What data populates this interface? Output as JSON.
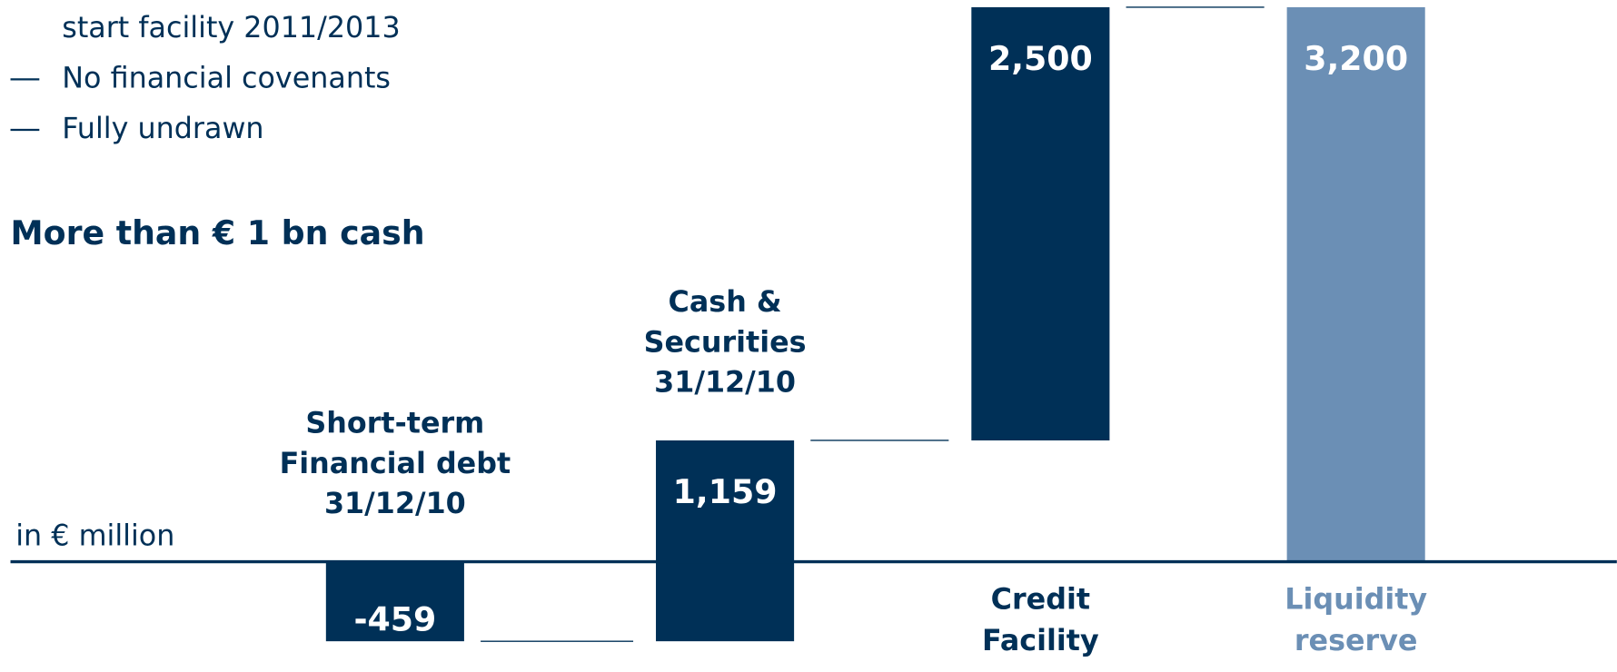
{
  "notes": [
    "start facility 2011/2013",
    "No financial covenants",
    "Fully undrawn"
  ],
  "heading": "More than € 1 bn cash",
  "chart_data": {
    "type": "waterfall",
    "unit_label": "in € million",
    "categories": [
      [
        "Short-term",
        "Financial debt",
        "31/12/10"
      ],
      [
        "Cash &",
        "Securities",
        "31/12/10"
      ],
      [
        "Credit",
        "Facility"
      ],
      [
        "Liquidity",
        "reserve"
      ]
    ],
    "values": [
      -459,
      1159,
      2500,
      3200
    ],
    "value_labels": [
      "-459",
      "1,159",
      "2,500",
      "3,200"
    ],
    "colors": [
      "#003057",
      "#003057",
      "#003057",
      "#6b8fb5"
    ]
  }
}
